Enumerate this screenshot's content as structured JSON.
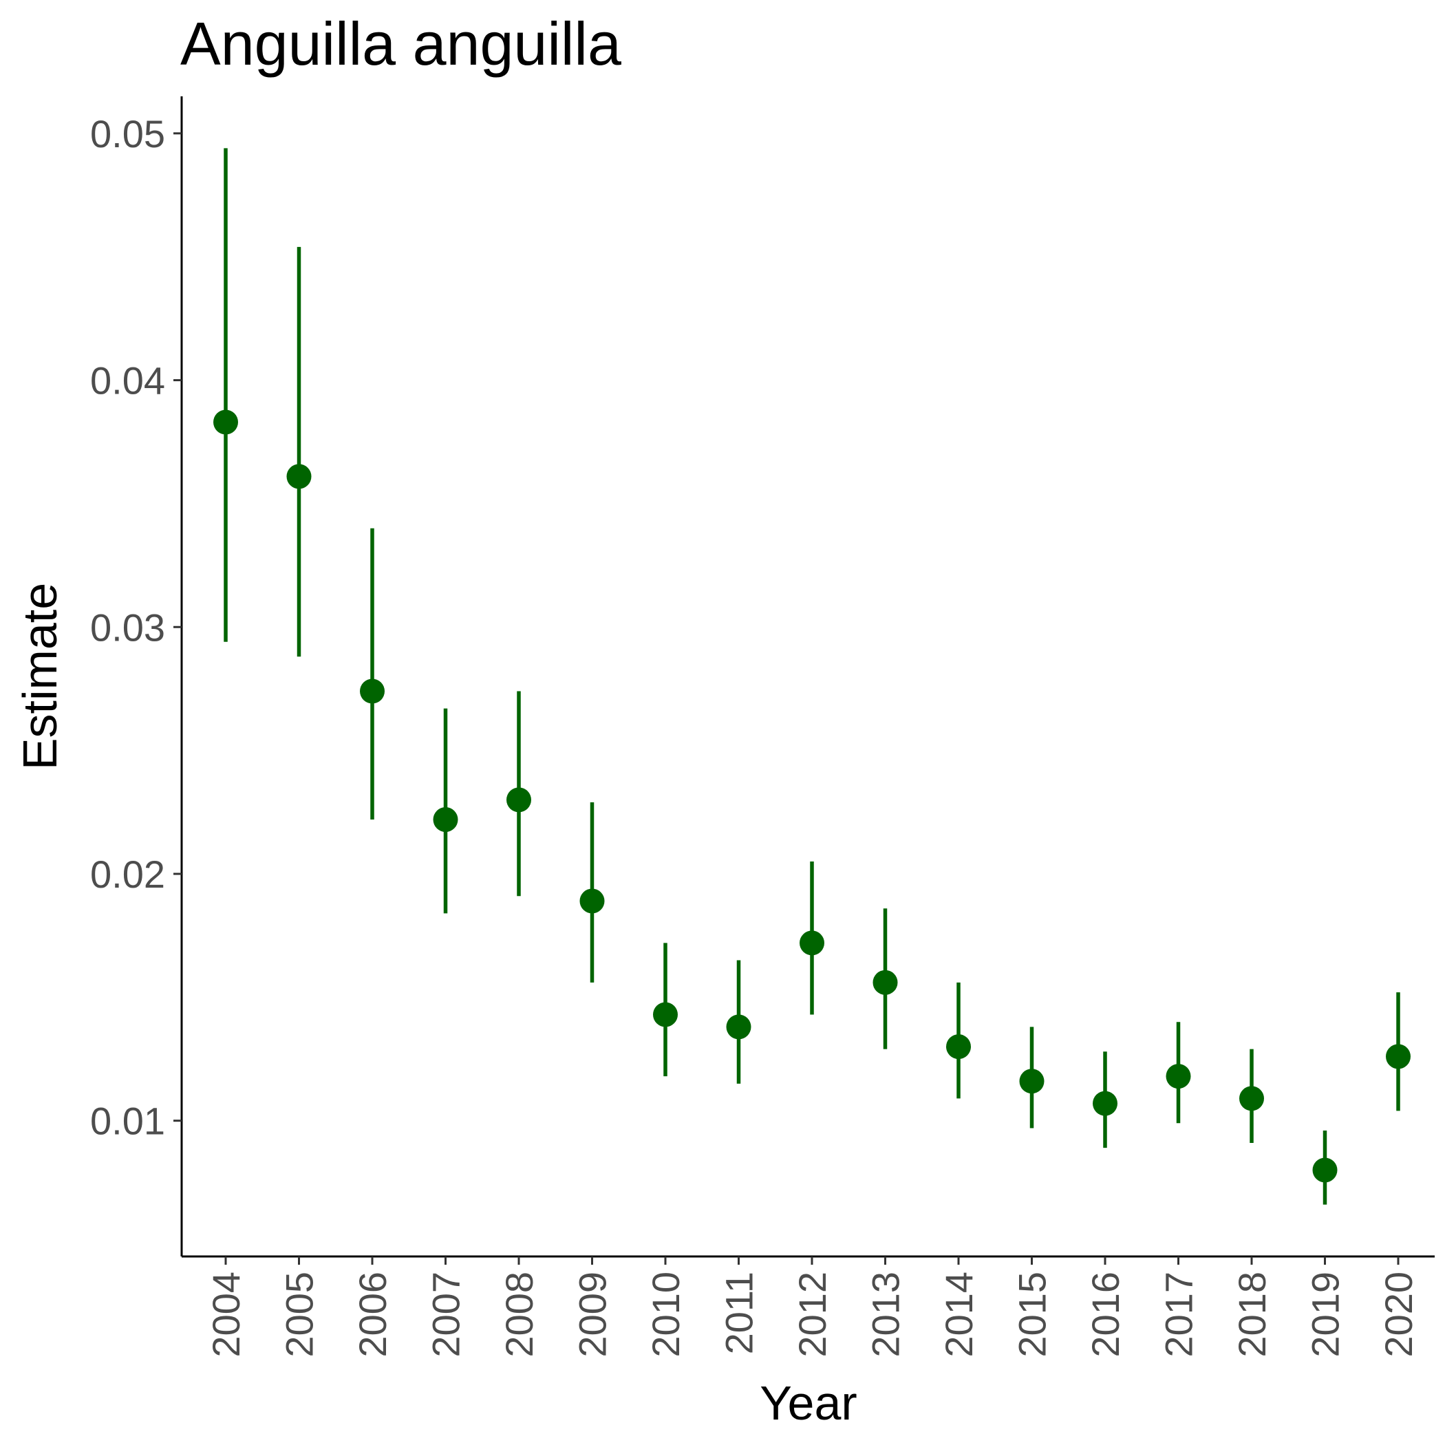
{
  "chart_data": {
    "type": "scatter",
    "title": "Anguilla anguilla",
    "xlabel": "Year",
    "ylabel": "Estimate",
    "ylim": [
      0.0045,
      0.0515
    ],
    "y_ticks": [
      "0.01",
      "0.02",
      "0.03",
      "0.04",
      "0.05"
    ],
    "grid": false,
    "legend": "none",
    "color": "#006400",
    "categories": [
      "2004",
      "2005",
      "2006",
      "2007",
      "2008",
      "2009",
      "2010",
      "2011",
      "2012",
      "2013",
      "2014",
      "2015",
      "2016",
      "2017",
      "2018",
      "2019",
      "2020"
    ],
    "estimate": [
      0.0383,
      0.0361,
      0.0274,
      0.0222,
      0.023,
      0.0189,
      0.0143,
      0.0138,
      0.0172,
      0.0156,
      0.013,
      0.0116,
      0.0107,
      0.0118,
      0.0109,
      0.008,
      0.0126
    ],
    "lower": [
      0.0294,
      0.0288,
      0.0222,
      0.0184,
      0.0191,
      0.0156,
      0.0118,
      0.0115,
      0.0143,
      0.0129,
      0.0109,
      0.0097,
      0.0089,
      0.0099,
      0.0091,
      0.0066,
      0.0104
    ],
    "upper": [
      0.0494,
      0.0454,
      0.034,
      0.0267,
      0.0274,
      0.0229,
      0.0172,
      0.0165,
      0.0205,
      0.0186,
      0.0156,
      0.0138,
      0.0128,
      0.014,
      0.0129,
      0.0096,
      0.0152
    ]
  }
}
